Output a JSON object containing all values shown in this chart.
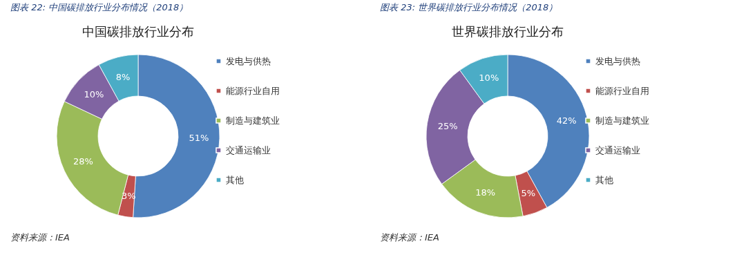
{
  "chart_data": [
    {
      "type": "donut",
      "title": "图表 22:  中国碳排放行业分布情况（2018）",
      "subtitle": "中国碳排放行业分布",
      "categories": [
        "发电与供热",
        "能源行业自用",
        "制造与建筑业",
        "交通运输业",
        "其他"
      ],
      "values": [
        51,
        3,
        28,
        10,
        8
      ],
      "value_labels": [
        "51%",
        "3%",
        "28%",
        "10%",
        "8%"
      ],
      "colors": [
        "#4f81bd",
        "#c0504d",
        "#9bbb59",
        "#8064a2",
        "#4bacc6"
      ],
      "legend": "right",
      "annotations": [
        "资料来源：IEA"
      ]
    },
    {
      "type": "donut",
      "title": "图表 23:  世界碳排放行业分布情况（2018）",
      "subtitle": "世界碳排放行业分布",
      "categories": [
        "发电与供热",
        "能源行业自用",
        "制造与建筑业",
        "交通运输业",
        "其他"
      ],
      "values": [
        42,
        5,
        18,
        25,
        10
      ],
      "value_labels": [
        "42%",
        "5%",
        "18%",
        "25%",
        "10%"
      ],
      "colors": [
        "#4f81bd",
        "#c0504d",
        "#9bbb59",
        "#8064a2",
        "#4bacc6"
      ],
      "legend": "right",
      "annotations": [
        "资料来源：IEA"
      ]
    }
  ]
}
